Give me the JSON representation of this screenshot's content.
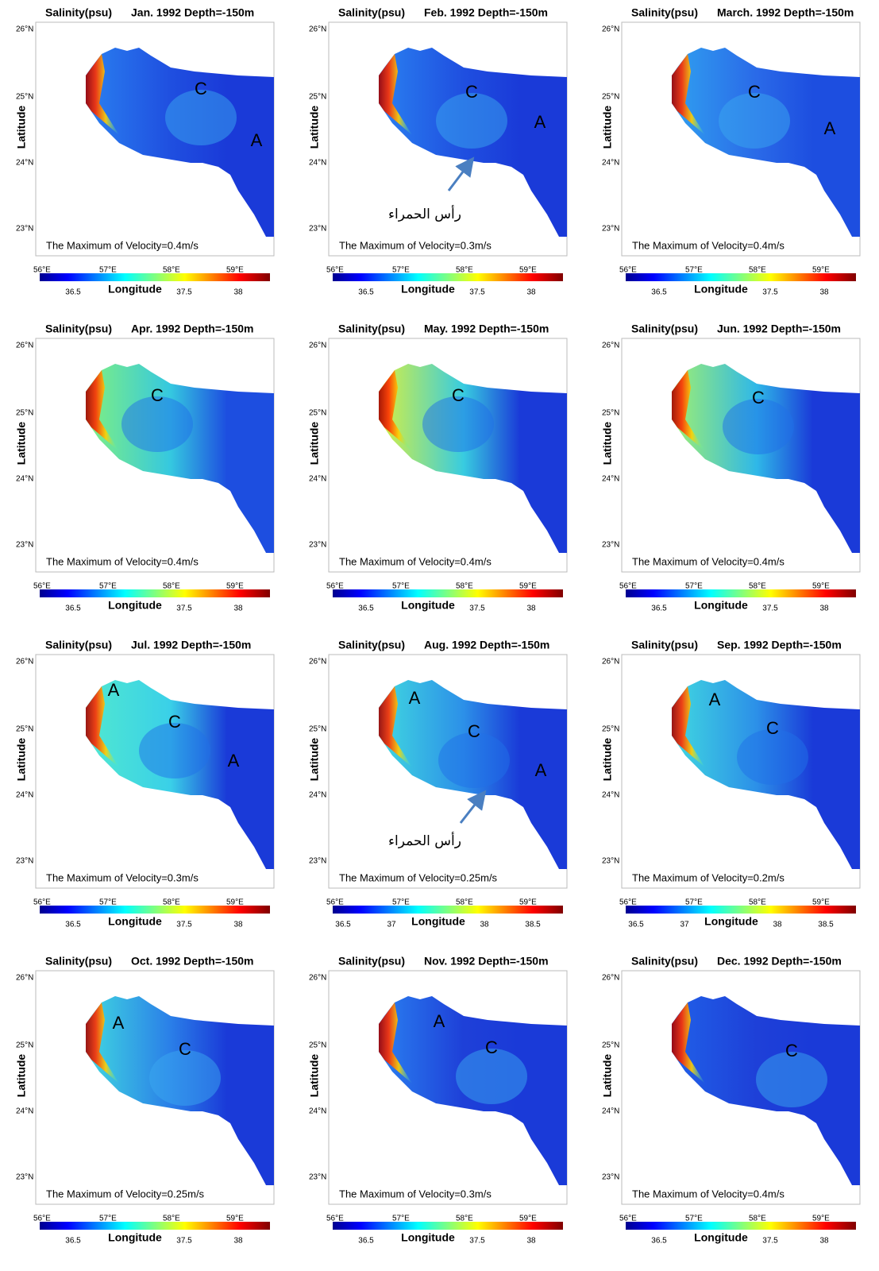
{
  "panels": [
    {
      "title": "Salinity(psu)",
      "date": "Jan. 1992 Depth=-150m",
      "y_axis_label": "Latitude",
      "x_axis_label": "Longitude",
      "lat_ticks": [
        "26°N",
        "25°N",
        "24°N",
        "23°N"
      ],
      "lon_ticks": [
        "56°E",
        "57°E",
        "58°E",
        "59°E"
      ],
      "colorbar_ticks": [
        36.5,
        37.5,
        38
      ],
      "velocity_note": "The Maximum of Velocity=0.4m/s",
      "labels": [
        "C",
        "A"
      ]
    },
    {
      "title": "Salinity(psu)",
      "date": "Feb. 1992 Depth=-150m",
      "y_axis_label": "Latitude",
      "x_axis_label": "Longitude",
      "lat_ticks": [
        "26°N",
        "25°N",
        "24°N",
        "23°N"
      ],
      "lon_ticks": [
        "56°E",
        "57°E",
        "58°E",
        "59°E"
      ],
      "colorbar_ticks": [
        36.5,
        37.5,
        38
      ],
      "velocity_note": "The Maximum of Velocity=0.3m/s",
      "labels": [
        "C",
        "A"
      ],
      "place_label": "رأس الحمراء"
    },
    {
      "title": "Salinity(psu)",
      "date": "March. 1992 Depth=-150m",
      "y_axis_label": "Latitude",
      "x_axis_label": "Longitude",
      "lat_ticks": [
        "26°N",
        "25°N",
        "24°N",
        "23°N"
      ],
      "lon_ticks": [
        "56°E",
        "57°E",
        "58°E",
        "59°E"
      ],
      "colorbar_ticks": [
        36.5,
        37.5,
        38
      ],
      "velocity_note": "The Maximum of Velocity=0.4m/s",
      "labels": [
        "C",
        "A"
      ]
    },
    {
      "title": "Salinity(psu)",
      "date": "Apr. 1992 Depth=-150m",
      "y_axis_label": "Latitude",
      "x_axis_label": "Longitude",
      "lat_ticks": [
        "26°N",
        "25°N",
        "24°N",
        "23°N"
      ],
      "lon_ticks": [
        "56°E",
        "57°E",
        "58°E",
        "59°E"
      ],
      "colorbar_ticks": [
        36.5,
        37.5,
        38
      ],
      "velocity_note": "The Maximum of Velocity=0.4m/s",
      "labels": [
        "C"
      ]
    },
    {
      "title": "Salinity(psu)",
      "date": "May. 1992 Depth=-150m",
      "y_axis_label": "Latitude",
      "x_axis_label": "Longitude",
      "lat_ticks": [
        "26°N",
        "25°N",
        "24°N",
        "23°N"
      ],
      "lon_ticks": [
        "56°E",
        "57°E",
        "58°E",
        "59°E"
      ],
      "colorbar_ticks": [
        36.5,
        37.5,
        38
      ],
      "velocity_note": "The Maximum of Velocity=0.4m/s",
      "labels": [
        "C"
      ]
    },
    {
      "title": "Salinity(psu)",
      "date": "Jun. 1992 Depth=-150m",
      "y_axis_label": "Latitude",
      "x_axis_label": "Longitude",
      "lat_ticks": [
        "26°N",
        "25°N",
        "24°N",
        "23°N"
      ],
      "lon_ticks": [
        "56°E",
        "57°E",
        "58°E",
        "59°E"
      ],
      "colorbar_ticks": [
        36.5,
        37.5,
        38
      ],
      "velocity_note": "The Maximum of Velocity=0.4m/s",
      "labels": [
        "C"
      ]
    },
    {
      "title": "Salinity(psu)",
      "date": "Jul. 1992 Depth=-150m",
      "y_axis_label": "Latitude",
      "x_axis_label": "Longitude",
      "lat_ticks": [
        "26°N",
        "25°N",
        "24°N",
        "23°N"
      ],
      "lon_ticks": [
        "56°E",
        "57°E",
        "58°E",
        "59°E"
      ],
      "colorbar_ticks": [
        36.5,
        37.5,
        38
      ],
      "velocity_note": "The Maximum of Velocity=0.3m/s",
      "labels": [
        "A",
        "C",
        "A"
      ]
    },
    {
      "title": "Salinity(psu)",
      "date": "Aug. 1992 Depth=-150m",
      "y_axis_label": "Latitude",
      "x_axis_label": "Longitude",
      "lat_ticks": [
        "26°N",
        "25°N",
        "24°N",
        "23°N"
      ],
      "lon_ticks": [
        "56°E",
        "57°E",
        "58°E",
        "59°E"
      ],
      "colorbar_ticks": [
        36.5,
        37,
        38,
        38.5
      ],
      "velocity_note": "The Maximum of Velocity=0.25m/s",
      "labels": [
        "A",
        "C",
        "A"
      ],
      "place_label": "رأس الحمراء"
    },
    {
      "title": "Salinity(psu)",
      "date": "Sep. 1992 Depth=-150m",
      "y_axis_label": "Latitude",
      "x_axis_label": "Longitude",
      "lat_ticks": [
        "26°N",
        "25°N",
        "24°N",
        "23°N"
      ],
      "lon_ticks": [
        "56°E",
        "57°E",
        "58°E",
        "59°E"
      ],
      "colorbar_ticks": [
        36.5,
        37,
        38,
        38.5
      ],
      "velocity_note": "The Maximum of Velocity=0.2m/s",
      "labels": [
        "A",
        "C"
      ]
    },
    {
      "title": "Salinity(psu)",
      "date": "Oct. 1992 Depth=-150m",
      "y_axis_label": "Latitude",
      "x_axis_label": "Longitude",
      "lat_ticks": [
        "26°N",
        "25°N",
        "24°N",
        "23°N"
      ],
      "lon_ticks": [
        "56°E",
        "57°E",
        "58°E",
        "59°E"
      ],
      "colorbar_ticks": [
        36.5,
        37.5,
        38
      ],
      "velocity_note": "The Maximum of Velocity=0.25m/s",
      "labels": [
        "A",
        "C"
      ]
    },
    {
      "title": "Salinity(psu)",
      "date": "Nov. 1992 Depth=-150m",
      "y_axis_label": "Latitude",
      "x_axis_label": "Longitude",
      "lat_ticks": [
        "26°N",
        "25°N",
        "24°N",
        "23°N"
      ],
      "lon_ticks": [
        "56°E",
        "57°E",
        "58°E",
        "59°E"
      ],
      "colorbar_ticks": [
        36.5,
        37.5,
        38
      ],
      "velocity_note": "The Maximum of Velocity=0.3m/s",
      "labels": [
        "A",
        "C"
      ]
    },
    {
      "title": "Salinity(psu)",
      "date": "Dec. 1992 Depth=-150m",
      "y_axis_label": "Latitude",
      "x_axis_label": "Longitude",
      "lat_ticks": [
        "26°N",
        "25°N",
        "24°N",
        "23°N"
      ],
      "lon_ticks": [
        "56°E",
        "57°E",
        "58°E",
        "59°E"
      ],
      "colorbar_ticks": [
        36.5,
        37.5,
        38
      ],
      "velocity_note": "The Maximum of Velocity=0.4m/s",
      "labels": [
        "C"
      ]
    }
  ]
}
